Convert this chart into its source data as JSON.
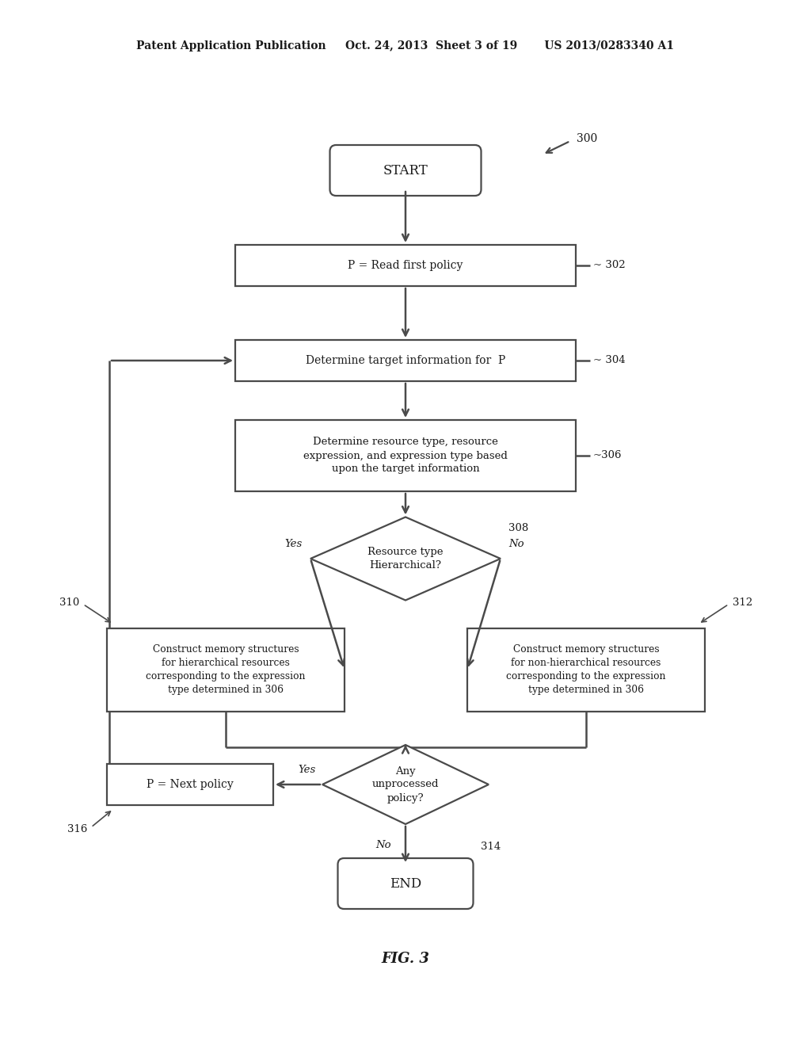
{
  "bg_color": "#ffffff",
  "text_color": "#1a1a1a",
  "box_edge_color": "#4a4a4a",
  "line_color": "#4a4a4a",
  "header": "Patent Application Publication     Oct. 24, 2013  Sheet 3 of 19       US 2013/0283340 A1",
  "fig_label": "FIG. 3",
  "start_label": "START",
  "end_label": "END",
  "n302_label": "P = Read first policy",
  "n302_ref": "302",
  "n304_label": "Determine target information for  P",
  "n304_ref": "304",
  "n306_label": "Determine resource type, resource\nexpression, and expression type based\nupon the target information",
  "n306_ref": "306",
  "n308_label": "Resource type\nHierarchical?",
  "n308_ref": "308",
  "n310_label": "Construct memory structures\nfor hierarchical resources\ncorresponding to the expression\ntype determined in 306",
  "n310_ref": "310",
  "n312_label": "Construct memory structures\nfor non-hierarchical resources\ncorresponding to the expression\ntype determined in 306",
  "n312_ref": "312",
  "n314_label": "Any\nunprocessed\npolicy?",
  "n314_ref": "314",
  "n316_label": "P = Next policy",
  "n316_ref": "316",
  "ref300": "300",
  "yes_label": "Yes",
  "no_label": "No"
}
